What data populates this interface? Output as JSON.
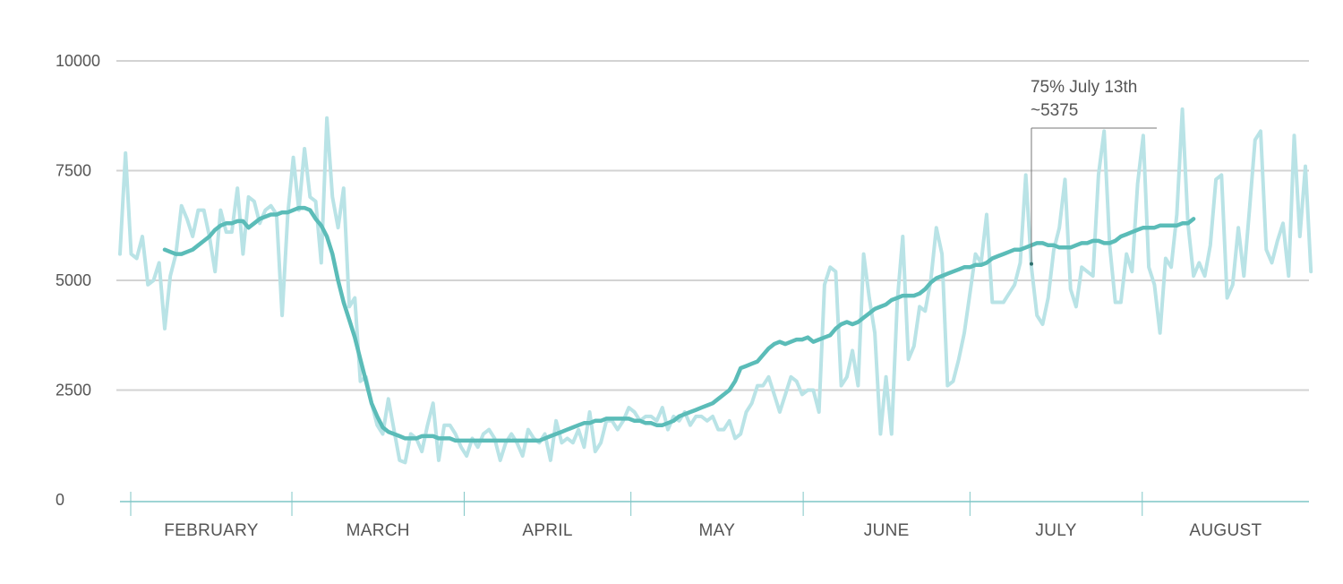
{
  "chart_data": {
    "type": "line",
    "title": "",
    "xlabel": "",
    "ylabel": "",
    "ylim": [
      0,
      10000
    ],
    "yticks": [
      0,
      2500,
      5000,
      7500,
      10000
    ],
    "ytick_labels": [
      "0",
      "2500",
      "5000",
      "7500",
      "10000"
    ],
    "grid": true,
    "x_start": "2020-02-01",
    "x_end": "2020-08-31",
    "months": [
      {
        "label": "FEBRUARY",
        "start": "2020-02-01"
      },
      {
        "label": "MARCH",
        "start": "2020-03-01"
      },
      {
        "label": "APRIL",
        "start": "2020-04-01"
      },
      {
        "label": "MAY",
        "start": "2020-05-01"
      },
      {
        "label": "JUNE",
        "start": "2020-06-01"
      },
      {
        "label": "JULY",
        "start": "2020-07-01"
      },
      {
        "label": "AUGUST",
        "start": "2020-08-01"
      }
    ],
    "month_end": "2020-08-31",
    "series": [
      {
        "color": "#b9e3e6",
        "values": [
          5600,
          7900,
          5600,
          5500,
          6000,
          4900,
          5000,
          5400,
          3900,
          5100,
          5600,
          6700,
          6400,
          6000,
          6600,
          6600,
          6000,
          5200,
          6600,
          6100,
          6100,
          7100,
          5600,
          6900,
          6800,
          6300,
          6600,
          6700,
          6500,
          4200,
          6500,
          7800,
          6600,
          8000,
          6900,
          6800,
          5400,
          8700,
          6900,
          6200,
          7100,
          4400,
          4600,
          2700,
          2800,
          2200,
          1700,
          1500,
          2300,
          1600,
          900,
          850,
          1500,
          1400,
          1100,
          1700,
          2200,
          900,
          1700,
          1700,
          1500,
          1200,
          1000,
          1400,
          1200,
          1500,
          1600,
          1400,
          900,
          1300,
          1500,
          1300,
          1000,
          1600,
          1400,
          1300,
          1500,
          900,
          1800,
          1300,
          1400,
          1300,
          1600,
          1200,
          2000,
          1100,
          1300,
          1800,
          1800,
          1600,
          1800,
          2100,
          2000,
          1800,
          1900,
          1900,
          1800,
          2100,
          1600,
          1900,
          1800,
          2000,
          1700,
          1900,
          1900,
          1800,
          1900,
          1600,
          1600,
          1800,
          1400,
          1500,
          2000,
          2200,
          2600,
          2600,
          2800,
          2400,
          2000,
          2400,
          2800,
          2700,
          2400,
          2500,
          2500,
          2000,
          4900,
          5300,
          5200,
          2600,
          2800,
          3400,
          2600,
          5600,
          4600,
          3800,
          1500,
          2800,
          1500,
          4500,
          6000,
          3200,
          3500,
          4400,
          4300,
          5000,
          6200,
          5600,
          2600,
          2700,
          3200,
          3800,
          4700,
          5600,
          5400,
          6500,
          4500,
          4500,
          4500,
          4700,
          4900,
          5400,
          7400,
          5300,
          4200,
          4000,
          4600,
          5700,
          6200,
          7300,
          4800,
          4400,
          5300,
          5200,
          5100,
          7400,
          8400,
          5800,
          4500,
          4500,
          5600,
          5200,
          7200,
          8300,
          5300,
          4900,
          3800,
          5500,
          5300,
          6500,
          8900,
          6300,
          5100,
          5400,
          5100,
          5800,
          7300,
          7400,
          4600,
          4900,
          6200,
          5100,
          6600,
          8200,
          8400,
          5700,
          5400,
          5900,
          6300,
          5100,
          8300,
          6000,
          7600,
          5200
        ]
      },
      {
        "color": "#5bbcb8",
        "values": [
          5700,
          5650,
          5600,
          5600,
          5650,
          5700,
          5800,
          5900,
          6000,
          6150,
          6250,
          6300,
          6300,
          6350,
          6350,
          6200,
          6300,
          6400,
          6450,
          6500,
          6500,
          6550,
          6550,
          6600,
          6650,
          6650,
          6600,
          6400,
          6250,
          6000,
          5600,
          5000,
          4500,
          4100,
          3700,
          3200,
          2700,
          2200,
          1900,
          1650,
          1550,
          1500,
          1450,
          1400,
          1400,
          1400,
          1450,
          1450,
          1450,
          1400,
          1400,
          1400,
          1350,
          1350,
          1350,
          1350,
          1350,
          1350,
          1350,
          1350,
          1350,
          1350,
          1350,
          1350,
          1350,
          1350,
          1350,
          1350,
          1400,
          1450,
          1500,
          1550,
          1600,
          1650,
          1700,
          1750,
          1750,
          1800,
          1800,
          1850,
          1850,
          1850,
          1850,
          1850,
          1800,
          1800,
          1750,
          1750,
          1700,
          1700,
          1750,
          1800,
          1900,
          1950,
          2000,
          2050,
          2100,
          2150,
          2200,
          2300,
          2400,
          2500,
          2700,
          3000,
          3050,
          3100,
          3150,
          3300,
          3450,
          3550,
          3600,
          3550,
          3600,
          3650,
          3650,
          3700,
          3600,
          3650,
          3700,
          3750,
          3900,
          4000,
          4050,
          4000,
          4050,
          4150,
          4250,
          4350,
          4400,
          4450,
          4550,
          4600,
          4650,
          4650,
          4650,
          4700,
          4800,
          4950,
          5050,
          5100,
          5150,
          5200,
          5250,
          5300,
          5300,
          5350,
          5350,
          5400,
          5500,
          5550,
          5600,
          5650,
          5700,
          5700,
          5750,
          5800,
          5850,
          5850,
          5800,
          5800,
          5750,
          5750,
          5750,
          5800,
          5850,
          5850,
          5900,
          5900,
          5850,
          5850,
          5900,
          6000,
          6050,
          6100,
          6150,
          6200,
          6200,
          6200,
          6250,
          6250,
          6250,
          6250,
          6300,
          6300,
          6400
        ]
      }
    ],
    "annotations": [
      {
        "date": "2020-07-13",
        "value": 5375,
        "line1": "75% July 13th",
        "line2": "~5375"
      }
    ]
  }
}
